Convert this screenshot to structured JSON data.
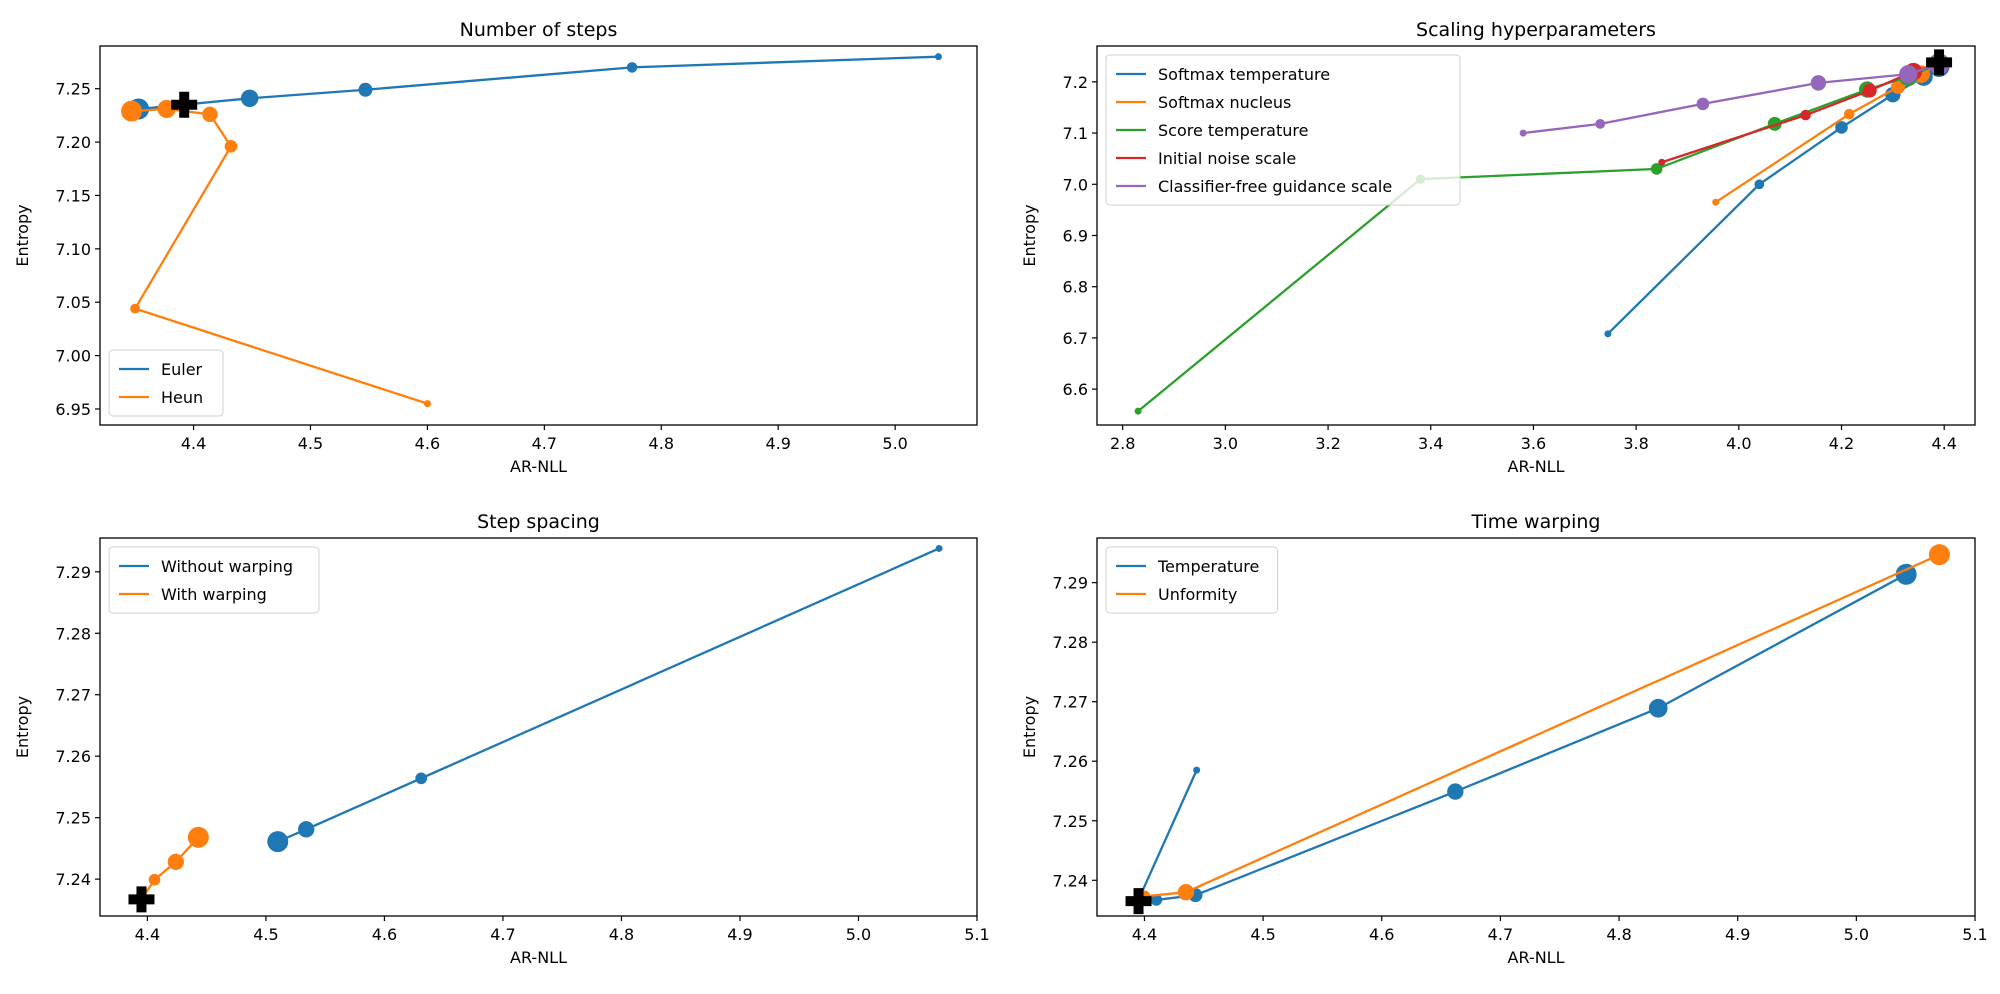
{
  "chart_data": [
    {
      "type": "line",
      "title": "Number of steps",
      "xlabel": "AR-NLL",
      "ylabel": "Entropy",
      "xlim": [
        4.32,
        5.07
      ],
      "ylim": [
        6.935,
        7.29
      ],
      "xticks": [
        4.4,
        4.5,
        4.6,
        4.7,
        4.8,
        4.9,
        5.0
      ],
      "yticks": [
        6.95,
        7.0,
        7.05,
        7.1,
        7.15,
        7.2,
        7.25
      ],
      "tick_decimals": [
        1,
        2
      ],
      "legend": "lower-left",
      "grid": false,
      "series": [
        {
          "name": "Euler",
          "color": "#1f77b4",
          "x": [
            5.037,
            4.775,
            4.547,
            4.448,
            4.353
          ],
          "y": [
            7.28,
            7.27,
            7.249,
            7.241,
            7.231
          ]
        },
        {
          "name": "Heun",
          "color": "#ff7f0e",
          "x": [
            4.6,
            4.35,
            4.432,
            4.414,
            4.377,
            4.347
          ],
          "y": [
            6.955,
            7.044,
            7.196,
            7.226,
            7.231,
            7.229
          ]
        }
      ],
      "reference_point": {
        "x": 4.392,
        "y": 7.235,
        "marker": "plus",
        "color": "#000000"
      }
    },
    {
      "type": "line",
      "title": "Scaling hyperparameters",
      "xlabel": "AR-NLL",
      "ylabel": "Entropy",
      "xlim": [
        2.75,
        4.46
      ],
      "ylim": [
        6.53,
        7.27
      ],
      "xticks": [
        2.8,
        3.0,
        3.2,
        3.4,
        3.6,
        3.8,
        4.0,
        4.2,
        4.4
      ],
      "yticks": [
        6.6,
        6.7,
        6.8,
        6.9,
        7.0,
        7.1,
        7.2
      ],
      "tick_decimals": [
        1,
        1
      ],
      "legend": "upper-left",
      "grid": false,
      "series": [
        {
          "name": "Softmax temperature",
          "color": "#1f77b4",
          "x": [
            3.745,
            4.04,
            4.2,
            4.3,
            4.36,
            4.39
          ],
          "y": [
            6.708,
            7.0,
            7.111,
            7.175,
            7.21,
            7.23
          ]
        },
        {
          "name": "Softmax nucleus",
          "color": "#ff7f0e",
          "x": [
            3.955,
            4.215,
            4.31,
            4.355,
            4.39
          ],
          "y": [
            6.965,
            7.137,
            7.19,
            7.215,
            7.235
          ]
        },
        {
          "name": "Score temperature",
          "color": "#2ca02c",
          "x": [
            2.83,
            3.38,
            3.84,
            4.07,
            4.25,
            4.33,
            4.39
          ],
          "y": [
            6.557,
            7.01,
            7.03,
            7.118,
            7.185,
            7.21,
            7.235
          ]
        },
        {
          "name": "Initial noise scale",
          "color": "#d62728",
          "x": [
            3.85,
            4.13,
            4.255,
            4.34,
            4.39
          ],
          "y": [
            7.043,
            7.135,
            7.183,
            7.22,
            7.235
          ]
        },
        {
          "name": "Classifier-free guidance scale",
          "color": "#9467bd",
          "x": [
            3.58,
            3.73,
            3.93,
            4.155,
            4.33,
            4.39
          ],
          "y": [
            7.1,
            7.118,
            7.157,
            7.198,
            7.215,
            7.235
          ]
        }
      ],
      "reference_point": {
        "x": 4.39,
        "y": 7.238,
        "marker": "plus",
        "color": "#000000"
      }
    },
    {
      "type": "line",
      "title": "Step spacing",
      "xlabel": "AR-NLL",
      "ylabel": "Entropy",
      "xlim": [
        4.36,
        5.1
      ],
      "ylim": [
        7.234,
        7.2955
      ],
      "xticks": [
        4.4,
        4.5,
        4.6,
        4.7,
        4.8,
        4.9,
        5.0,
        5.1
      ],
      "yticks": [
        7.24,
        7.25,
        7.26,
        7.27,
        7.28,
        7.29
      ],
      "tick_decimals": [
        1,
        2
      ],
      "legend": "upper-left",
      "grid": false,
      "series": [
        {
          "name": "Without warping",
          "color": "#1f77b4",
          "x": [
            5.068,
            4.631,
            4.534,
            4.51
          ],
          "y": [
            7.2938,
            7.2564,
            7.2481,
            7.2461
          ]
        },
        {
          "name": "With warping",
          "color": "#ff7f0e",
          "x": [
            4.395,
            4.406,
            4.424,
            4.443
          ],
          "y": [
            7.2367,
            7.2399,
            7.2428,
            7.2468
          ]
        }
      ],
      "reference_point": {
        "x": 4.395,
        "y": 7.2367,
        "marker": "plus",
        "color": "#000000"
      }
    },
    {
      "type": "line",
      "title": "Time warping",
      "xlabel": "AR-NLL",
      "ylabel": "Entropy",
      "xlim": [
        4.36,
        5.1
      ],
      "ylim": [
        7.234,
        7.2975
      ],
      "xticks": [
        4.4,
        4.5,
        4.6,
        4.7,
        4.8,
        4.9,
        5.0,
        5.1
      ],
      "yticks": [
        7.24,
        7.25,
        7.26,
        7.27,
        7.28,
        7.29
      ],
      "tick_decimals": [
        1,
        2
      ],
      "legend": "upper-left",
      "grid": false,
      "series": [
        {
          "name": "Temperature",
          "color": "#1f77b4",
          "x": [
            4.444,
            4.396,
            4.41,
            4.443,
            4.662,
            4.833,
            5.042
          ],
          "y": [
            7.2585,
            7.2372,
            7.2367,
            7.2375,
            7.2549,
            7.2689,
            7.2914
          ]
        },
        {
          "name": "Unformity",
          "color": "#ff7f0e",
          "x": [
            4.397,
            4.4,
            4.435,
            5.07
          ],
          "y": [
            7.237,
            7.2373,
            7.238,
            7.2947
          ]
        }
      ],
      "reference_point": {
        "x": 4.395,
        "y": 7.2365,
        "marker": "plus",
        "color": "#000000"
      }
    }
  ]
}
